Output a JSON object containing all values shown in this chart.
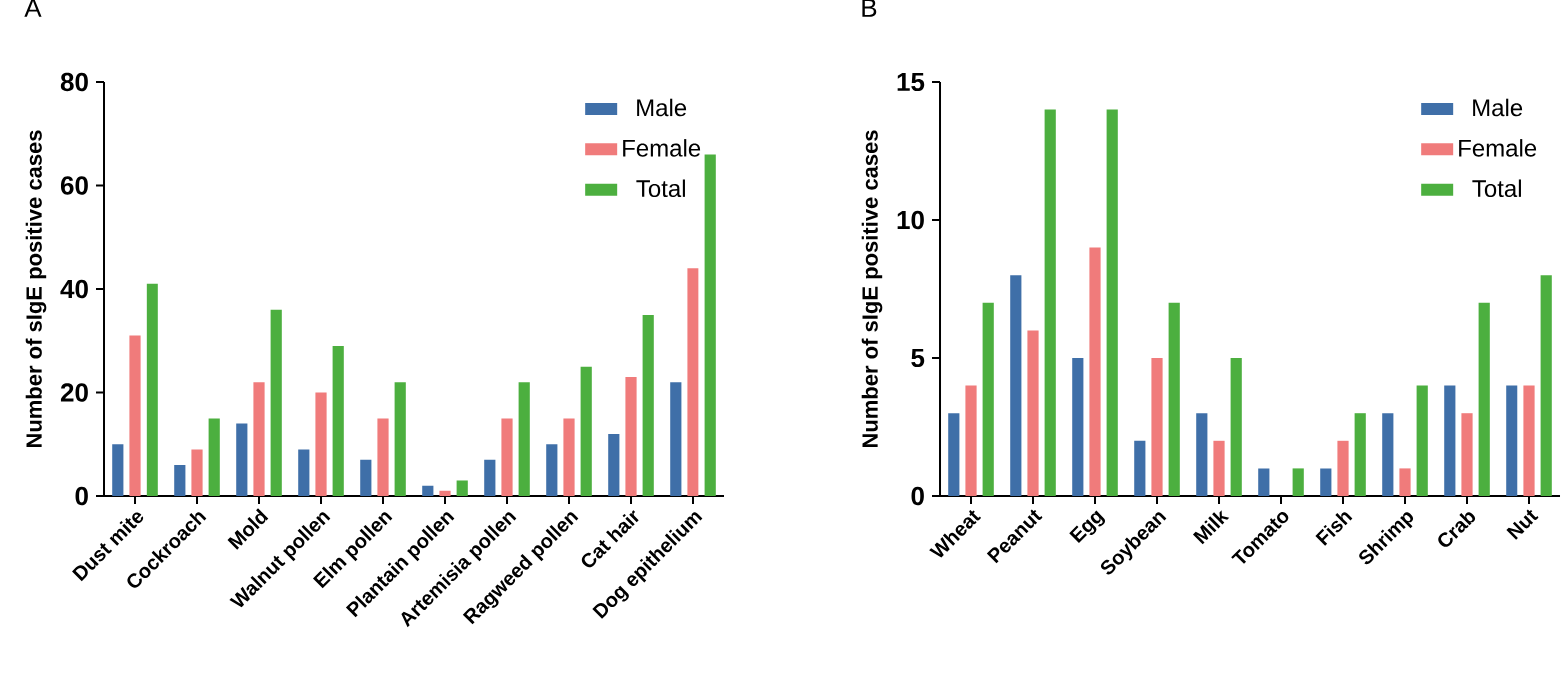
{
  "chart_data": [
    {
      "type": "bar",
      "title": "A",
      "ylabel": "Number of sIgE positive cases",
      "categories": [
        "Dust mite",
        "Cockroach",
        "Mold",
        "Walnut pollen",
        "Elm pollen",
        "Plantain pollen",
        "Artemisia pollen",
        "Ragweed pollen",
        "Cat hair",
        "Dog epithelium"
      ],
      "series": [
        {
          "name": "Male",
          "color": "#3f6fa8",
          "values": [
            10,
            6,
            14,
            9,
            7,
            2,
            7,
            10,
            12,
            22
          ]
        },
        {
          "name": "Female",
          "color": "#f07b7b",
          "values": [
            31,
            9,
            22,
            20,
            15,
            1,
            15,
            15,
            23,
            44
          ]
        },
        {
          "name": "Total",
          "color": "#4caf3f",
          "values": [
            41,
            15,
            36,
            29,
            22,
            3,
            22,
            25,
            35,
            66
          ]
        }
      ],
      "ylim": [
        0,
        80
      ],
      "yticks": [
        0,
        20,
        40,
        60,
        80
      ],
      "grid": false,
      "legend": "top right"
    },
    {
      "type": "bar",
      "title": "B",
      "ylabel": "Number of sIgE positive cases",
      "categories": [
        "Wheat",
        "Peanut",
        "Egg",
        "Soybean",
        "Milk",
        "Tomato",
        "Fish",
        "Shrimp",
        "Crab",
        "Nut"
      ],
      "series": [
        {
          "name": "Male",
          "color": "#3f6fa8",
          "values": [
            3,
            8,
            5,
            2,
            3,
            1,
            1,
            3,
            4,
            4
          ]
        },
        {
          "name": "Female",
          "color": "#f07b7b",
          "values": [
            4,
            6,
            9,
            5,
            2,
            0,
            2,
            1,
            3,
            4
          ]
        },
        {
          "name": "Total",
          "color": "#4caf3f",
          "values": [
            7,
            14,
            14,
            7,
            5,
            1,
            3,
            4,
            7,
            8
          ]
        }
      ],
      "ylim": [
        0,
        15
      ],
      "yticks": [
        0,
        5,
        10,
        15
      ],
      "grid": false,
      "legend": "top right"
    }
  ]
}
